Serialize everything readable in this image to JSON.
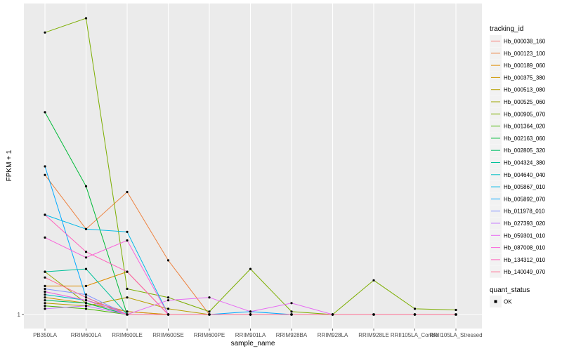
{
  "chart_data": {
    "type": "line",
    "title": "",
    "xlabel": "sample_name",
    "ylabel": "FPKM + 1",
    "categories": [
      "PB350LA",
      "RRIM600LA",
      "RRIM600LE",
      "RRIM600SE",
      "RRIM600PE",
      "RRIM901LA",
      "RRIM928BA",
      "RRIM928LA",
      "RRIM928LE",
      "RRII105LA_Control",
      "RRII105LA_Stressed"
    ],
    "y_ticks": [
      1
    ],
    "y_tick_labels": [
      "1"
    ],
    "ylim": [
      0.8,
      6.3
    ],
    "grid": true,
    "legend_position": "right",
    "legend_title": "tracking_id",
    "series": [
      {
        "name": "Hb_000038_160",
        "color": "#F8766D",
        "values": [
          1.4,
          1.25,
          1.05,
          1.0,
          1.0,
          1.0,
          1.0,
          1.0,
          1.0,
          1.0,
          1.0
        ]
      },
      {
        "name": "Hb_000123_100",
        "color": "#ED813E",
        "values": [
          3.45,
          2.5,
          3.15,
          1.95,
          1.0,
          1.0,
          1.0,
          1.0,
          1.0,
          1.0,
          1.0
        ]
      },
      {
        "name": "Hb_000189_060",
        "color": "#DE8C00",
        "values": [
          1.5,
          1.5,
          1.75,
          1.0,
          1.0,
          1.0,
          1.0,
          1.0,
          1.0,
          1.0,
          1.0
        ]
      },
      {
        "name": "Hb_000375_380",
        "color": "#CD9600",
        "values": [
          1.3,
          1.2,
          1.05,
          1.0,
          1.0,
          1.0,
          1.0,
          1.0,
          1.0,
          1.0,
          1.0
        ]
      },
      {
        "name": "Hb_000513_080",
        "color": "#B79F00",
        "values": [
          1.2,
          1.15,
          1.3,
          1.1,
          1.0,
          1.0,
          1.0,
          1.0,
          1.0,
          1.0,
          1.0
        ]
      },
      {
        "name": "Hb_000525_060",
        "color": "#9DA700",
        "values": [
          1.75,
          1.2,
          1.0,
          1.0,
          1.0,
          1.0,
          1.0,
          1.0,
          1.0,
          1.0,
          1.0
        ]
      },
      {
        "name": "Hb_000905_070",
        "color": "#7CAE00",
        "values": [
          5.95,
          6.2,
          1.45,
          1.3,
          1.05,
          1.8,
          1.05,
          1.0,
          1.6,
          1.1,
          1.08
        ]
      },
      {
        "name": "Hb_001364_020",
        "color": "#49B500",
        "values": [
          1.15,
          1.1,
          1.0,
          1.0,
          1.0,
          1.0,
          1.0,
          1.0,
          1.0,
          1.0,
          1.0
        ]
      },
      {
        "name": "Hb_002163_060",
        "color": "#00BA38",
        "values": [
          4.55,
          3.25,
          1.0,
          1.0,
          1.0,
          1.0,
          1.0,
          1.0,
          1.0,
          1.0,
          1.0
        ]
      },
      {
        "name": "Hb_002805_320",
        "color": "#00BE67",
        "values": [
          1.25,
          1.2,
          1.0,
          1.0,
          1.0,
          1.0,
          1.0,
          1.0,
          1.0,
          1.0,
          1.0
        ]
      },
      {
        "name": "Hb_004324_380",
        "color": "#00C19A",
        "values": [
          1.75,
          1.8,
          1.0,
          1.0,
          1.0,
          1.0,
          1.0,
          1.0,
          1.0,
          1.0,
          1.0
        ]
      },
      {
        "name": "Hb_004640_040",
        "color": "#00BFC4",
        "values": [
          1.35,
          1.25,
          1.0,
          1.0,
          1.0,
          1.0,
          1.0,
          1.0,
          1.0,
          1.0,
          1.0
        ]
      },
      {
        "name": "Hb_005867_010",
        "color": "#00B8E7",
        "values": [
          2.75,
          2.5,
          2.45,
          1.0,
          1.0,
          1.0,
          1.0,
          1.0,
          1.0,
          1.0,
          1.0
        ]
      },
      {
        "name": "Hb_005892_070",
        "color": "#00A9FF",
        "values": [
          3.6,
          1.3,
          1.0,
          1.0,
          1.0,
          1.05,
          1.0,
          1.0,
          1.0,
          1.0,
          1.0
        ]
      },
      {
        "name": "Hb_011978_010",
        "color": "#8494FF",
        "values": [
          1.45,
          1.35,
          1.0,
          1.0,
          1.0,
          1.0,
          1.0,
          1.0,
          1.0,
          1.0,
          1.0
        ]
      },
      {
        "name": "Hb_027393_020",
        "color": "#C77CFF",
        "values": [
          1.1,
          1.15,
          1.0,
          1.0,
          1.0,
          1.0,
          1.0,
          1.0,
          1.0,
          1.0,
          1.0
        ]
      },
      {
        "name": "Hb_059301_010",
        "color": "#E76BF3",
        "values": [
          1.4,
          1.25,
          1.0,
          1.25,
          1.3,
          1.05,
          1.2,
          1.0,
          1.0,
          1.0,
          1.0
        ]
      },
      {
        "name": "Hb_087008_010",
        "color": "#FA62DB",
        "values": [
          2.35,
          2.0,
          2.3,
          1.0,
          1.0,
          1.0,
          1.0,
          1.0,
          1.0,
          1.0,
          1.0
        ]
      },
      {
        "name": "Hb_134312_010",
        "color": "#FF62BC",
        "values": [
          2.75,
          2.1,
          1.75,
          1.0,
          1.0,
          1.0,
          1.0,
          1.0,
          1.0,
          1.0,
          1.0
        ]
      },
      {
        "name": "Hb_140049_070",
        "color": "#FF6C91",
        "values": [
          1.65,
          1.3,
          1.0,
          1.0,
          1.0,
          1.0,
          1.0,
          1.0,
          1.0,
          1.0,
          1.0
        ]
      }
    ],
    "legend2_title": "quant_status",
    "legend2_items": [
      "OK"
    ]
  }
}
